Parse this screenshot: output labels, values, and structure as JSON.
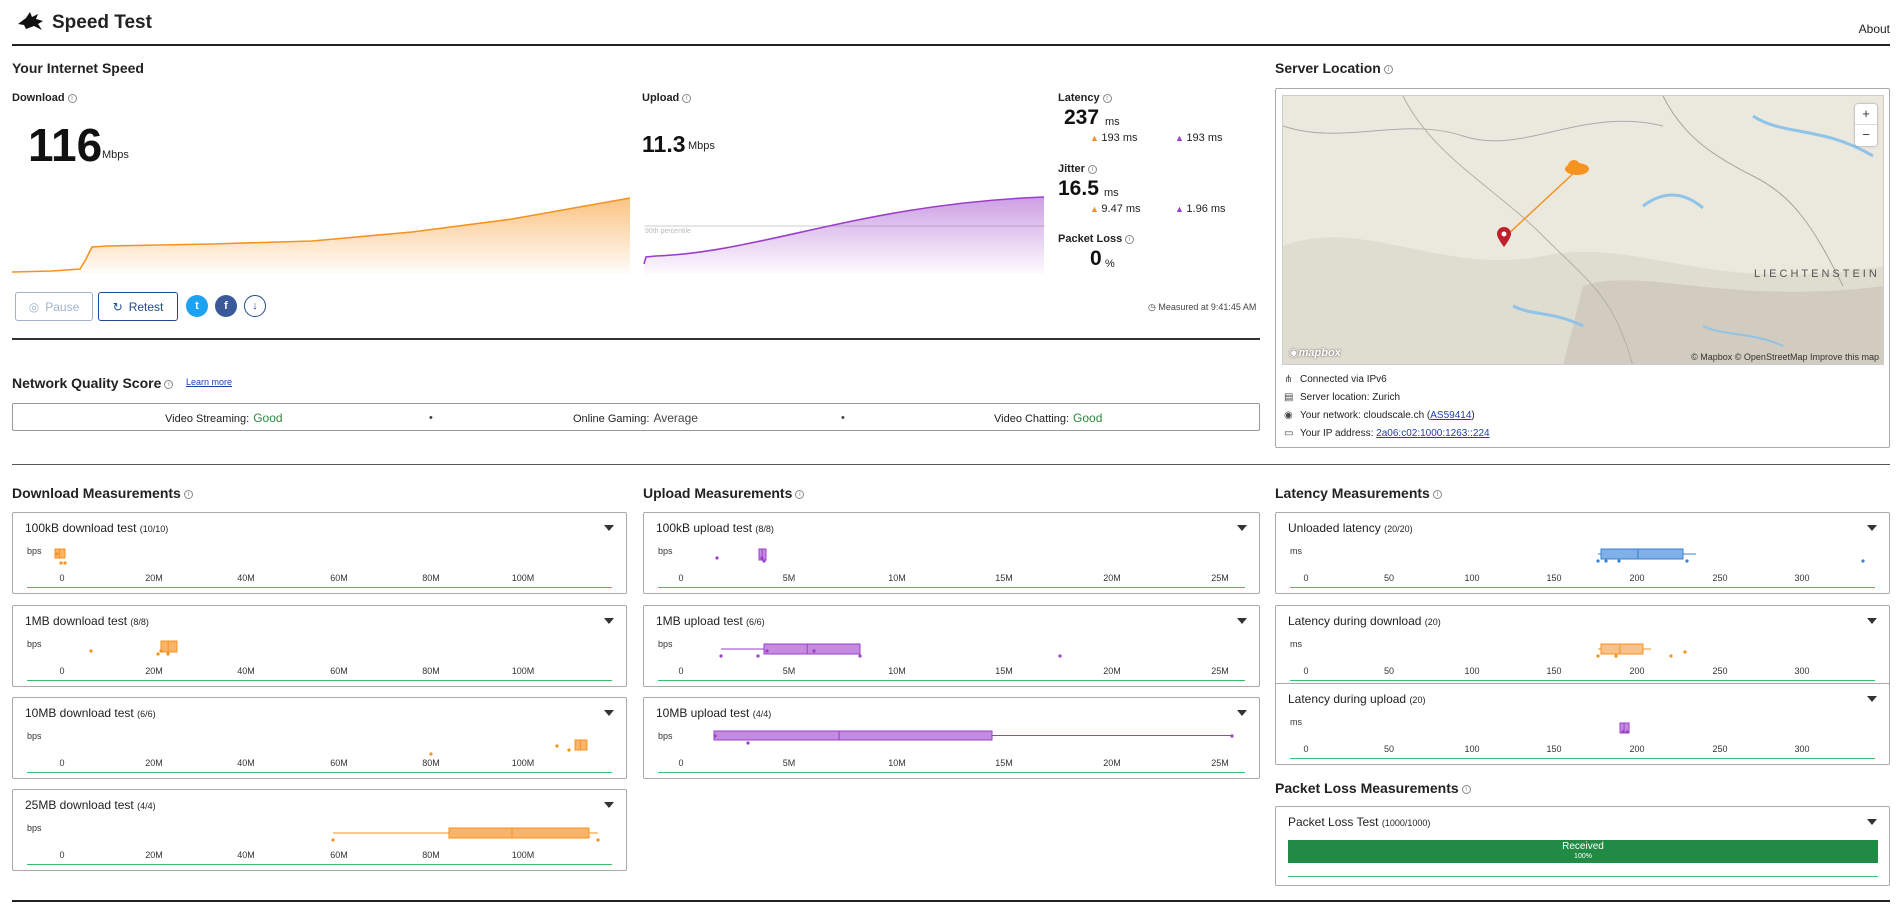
{
  "header": {
    "title": "Speed Test",
    "about": "About"
  },
  "speed": {
    "heading": "Your Internet Speed",
    "download_label": "Download",
    "download_value": "116",
    "download_unit": "Mbps",
    "upload_label": "Upload",
    "upload_value": "11.3",
    "upload_unit": "Mbps",
    "upload_percentile": "90th percentile",
    "latency_label": "Latency",
    "latency_value": "237",
    "latency_unit": "ms",
    "latency_down": "193 ms",
    "latency_up": "193 ms",
    "jitter_label": "Jitter",
    "jitter_value": "16.5",
    "jitter_unit": "ms",
    "jitter_down": "9.47 ms",
    "jitter_up": "1.96 ms",
    "loss_label": "Packet Loss",
    "loss_value": "0",
    "loss_unit": "%",
    "pause_label": "Pause",
    "retest_label": "Retest",
    "measured_at": "Measured at 9:41:45 AM"
  },
  "server": {
    "heading": "Server Location",
    "map_credit": "© Mapbox © OpenStreetMap Improve this map",
    "mapbox": "mapbox",
    "map_label": "LIECHTENSTEIN",
    "zoom_in": "+",
    "zoom_out": "−",
    "connected": "Connected via IPv6",
    "location": "Server location: Zurich",
    "network_prefix": "Your network: cloudscale.ch (",
    "network_link": "AS59414",
    "network_suffix": ")",
    "ip_prefix": "Your IP address: ",
    "ip_link": "2a06:c02:1000:1263::224"
  },
  "nqs": {
    "heading": "Network Quality Score",
    "learn_more": "Learn more",
    "streaming_label": "Video Streaming:",
    "streaming_value": "Good",
    "gaming_label": "Online Gaming:",
    "gaming_value": "Average",
    "chatting_label": "Video Chatting:",
    "chatting_value": "Good",
    "dot": "•"
  },
  "download_measurements": {
    "heading": "Download Measurements",
    "unit": "bps",
    "ticks": [
      "0",
      "20M",
      "40M",
      "60M",
      "80M",
      "100M"
    ],
    "tests": [
      {
        "title": "100kB download test",
        "count": "(10/10)"
      },
      {
        "title": "1MB download test",
        "count": "(8/8)"
      },
      {
        "title": "10MB download test",
        "count": "(6/6)"
      },
      {
        "title": "25MB download test",
        "count": "(4/4)"
      }
    ]
  },
  "upload_measurements": {
    "heading": "Upload Measurements",
    "unit": "bps",
    "ticks": [
      "0",
      "5M",
      "10M",
      "15M",
      "20M",
      "25M"
    ],
    "tests": [
      {
        "title": "100kB upload test",
        "count": "(8/8)"
      },
      {
        "title": "1MB upload test",
        "count": "(6/6)"
      },
      {
        "title": "10MB upload test",
        "count": "(4/4)"
      }
    ]
  },
  "latency_measurements": {
    "heading": "Latency Measurements",
    "unit": "ms",
    "ticks": [
      "0",
      "50",
      "100",
      "150",
      "200",
      "250",
      "300"
    ],
    "tests": [
      {
        "title": "Unloaded latency",
        "count": "(20/20)"
      },
      {
        "title": "Latency during download",
        "count": "(20)"
      },
      {
        "title": "Latency during upload",
        "count": "(20)"
      }
    ]
  },
  "packet_loss": {
    "heading": "Packet Loss Measurements",
    "test_title": "Packet Loss Test",
    "test_count": "(1000/1000)",
    "received_label": "Received",
    "received_pct": "100%"
  },
  "colors": {
    "download": "#f6921e",
    "upload": "#9b3fc8",
    "latency": "#5b9be0",
    "good": "#2b8a3e",
    "received": "#218b45"
  }
}
